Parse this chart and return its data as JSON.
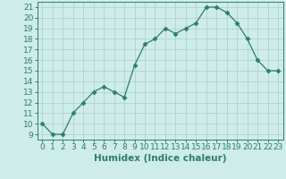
{
  "x": [
    0,
    1,
    2,
    3,
    4,
    5,
    6,
    7,
    8,
    9,
    10,
    11,
    12,
    13,
    14,
    15,
    16,
    17,
    18,
    19,
    20,
    21,
    22,
    23
  ],
  "y": [
    10,
    9,
    9,
    11,
    12,
    13,
    13.5,
    13,
    12.5,
    15.5,
    17.5,
    18,
    19,
    18.5,
    19,
    19.5,
    21,
    21,
    20.5,
    19.5,
    18,
    16,
    15,
    15
  ],
  "xlabel": "Humidex (Indice chaleur)",
  "line_color": "#2d7d6e",
  "marker": "D",
  "marker_size": 2.5,
  "bg_color": "#ceecea",
  "grid_color": "#aed4cf",
  "xlim": [
    -0.5,
    23.5
  ],
  "ylim": [
    8.5,
    21.5
  ],
  "yticks": [
    9,
    10,
    11,
    12,
    13,
    14,
    15,
    16,
    17,
    18,
    19,
    20,
    21
  ],
  "xticks": [
    0,
    1,
    2,
    3,
    4,
    5,
    6,
    7,
    8,
    9,
    10,
    11,
    12,
    13,
    14,
    15,
    16,
    17,
    18,
    19,
    20,
    21,
    22,
    23
  ],
  "tick_fontsize": 6.5,
  "xlabel_fontsize": 7.5
}
